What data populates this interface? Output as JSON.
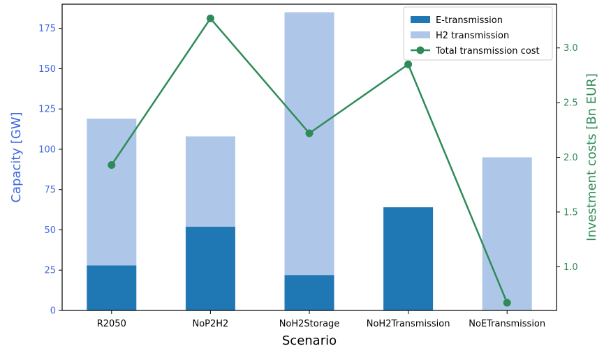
{
  "chart_data": {
    "type": "bar",
    "stacked": true,
    "secondary_type": "line",
    "categories": [
      "R2050",
      "NoP2H2",
      "NoH2Storage",
      "NoH2Transmission",
      "NoETransmission"
    ],
    "series": [
      {
        "name": "E-transmission",
        "axis": "left",
        "values": [
          28,
          52,
          22,
          64,
          0
        ],
        "color": "#1f77b4"
      },
      {
        "name": "H2 transmission",
        "axis": "left",
        "values": [
          91,
          56,
          163,
          0,
          95
        ],
        "color": "#aec7e8"
      },
      {
        "name": "Total transmission cost",
        "axis": "right",
        "type": "line",
        "values": [
          1.93,
          3.27,
          2.22,
          2.85,
          0.67
        ],
        "color": "#2e8b57"
      }
    ],
    "xlabel": "Scenario",
    "ylabel": "Capacity [GW]",
    "ylabel_color": "#4169e1",
    "y2label": "Investment costs [Bn EUR]",
    "y2label_color": "#2e8b57",
    "ylim": [
      0,
      190
    ],
    "y2lim": [
      0.6,
      3.4
    ],
    "yticks": [
      0,
      25,
      50,
      75,
      100,
      125,
      150,
      175
    ],
    "y2ticks": [
      1.0,
      1.5,
      2.0,
      2.5,
      3.0
    ],
    "y2tick_labels": [
      "1.0",
      "1.5",
      "2.0",
      "2.5",
      "3.0"
    ],
    "legend_position": "top-right",
    "grid": false
  }
}
